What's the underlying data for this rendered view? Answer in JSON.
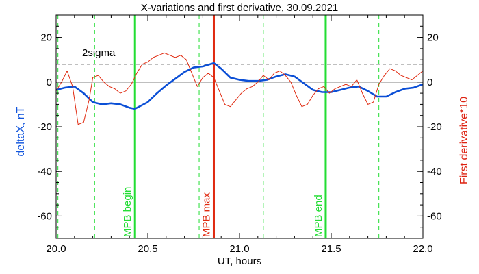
{
  "chart_data": {
    "type": "line",
    "title": "X-variations and first derivative, 30.09.2021",
    "xlabel": "UT, hours",
    "ylabel_left": "deltaX, nT",
    "ylabel_right": "First derivative*10",
    "xlim": [
      20.0,
      22.0
    ],
    "ylim": [
      -70,
      30
    ],
    "xticks": [
      20.0,
      20.5,
      21.0,
      21.5,
      22.0
    ],
    "xtick_labels": [
      "20.0",
      "20.5",
      "21.0",
      "21.5",
      "22.0"
    ],
    "yticks": [
      20,
      0,
      -20,
      -40,
      -60
    ],
    "ytick_labels": [
      "20",
      "0",
      "-20",
      "-40",
      "-60"
    ],
    "sigma_level": 8,
    "sigma_label": "2sigma",
    "colors": {
      "deltaX": "#0b4fd6",
      "derivative": "#e02a10",
      "mpb": "#22dd33",
      "mpb_max": "#e02a10",
      "dashed_green": "#22dd33",
      "left_axis_label": "#1155dd",
      "right_axis_label": "#dd2211"
    },
    "dashed_green_x": [
      20.01,
      20.21,
      20.78,
      21.13,
      21.76
    ],
    "markers": [
      {
        "label": "MPB begin",
        "x": 20.43,
        "color": "#22dd33"
      },
      {
        "label": "MPB max",
        "x": 20.86,
        "color": "#e02a10"
      },
      {
        "label": "MPB end",
        "x": 21.47,
        "color": "#22dd33"
      }
    ],
    "series": [
      {
        "name": "deltaX",
        "x": [
          20.0,
          20.05,
          20.1,
          20.15,
          20.2,
          20.25,
          20.3,
          20.35,
          20.4,
          20.43,
          20.5,
          20.55,
          20.6,
          20.65,
          20.7,
          20.75,
          20.8,
          20.86,
          20.9,
          20.95,
          21.0,
          21.05,
          21.1,
          21.15,
          21.2,
          21.25,
          21.3,
          21.35,
          21.4,
          21.45,
          21.5,
          21.55,
          21.6,
          21.65,
          21.7,
          21.75,
          21.8,
          21.85,
          21.9,
          21.95,
          22.0
        ],
        "y": [
          -3.5,
          -2.5,
          -2,
          -5,
          -9,
          -10,
          -9.5,
          -10,
          -11.5,
          -12,
          -9,
          -5,
          -1.5,
          1.5,
          4.5,
          6.5,
          7,
          8.5,
          6,
          2,
          1,
          0.5,
          0.5,
          1,
          2.5,
          3.5,
          2.5,
          -0.5,
          -3.5,
          -4.5,
          -4.5,
          -3.5,
          -2.5,
          -2,
          -4,
          -6.5,
          -6.5,
          -4.5,
          -3,
          -2.5,
          -1
        ]
      },
      {
        "name": "derivative",
        "x": [
          20.0,
          20.03,
          20.06,
          20.09,
          20.12,
          20.15,
          20.18,
          20.2,
          20.23,
          20.26,
          20.29,
          20.32,
          20.35,
          20.38,
          20.41,
          20.44,
          20.47,
          20.5,
          20.53,
          20.56,
          20.59,
          20.62,
          20.65,
          20.68,
          20.71,
          20.74,
          20.77,
          20.8,
          20.83,
          20.86,
          20.89,
          20.92,
          20.95,
          20.98,
          21.01,
          21.04,
          21.07,
          21.1,
          21.13,
          21.16,
          21.19,
          21.22,
          21.25,
          21.28,
          21.31,
          21.34,
          21.37,
          21.4,
          21.43,
          21.46,
          21.49,
          21.52,
          21.55,
          21.58,
          21.61,
          21.64,
          21.67,
          21.7,
          21.73,
          21.76,
          21.79,
          21.82,
          21.85,
          21.88,
          21.91,
          21.94,
          21.97,
          22.0
        ],
        "y": [
          -4,
          0,
          5,
          -2,
          -19,
          -18,
          -8,
          2,
          3,
          0,
          -2,
          -3,
          -5,
          -4,
          -1,
          4,
          8,
          9,
          11,
          12,
          13,
          12,
          11,
          12,
          10,
          4,
          -2,
          2,
          4,
          2,
          -4,
          -10,
          -11,
          -8,
          -5,
          -3,
          -2,
          0,
          3,
          1,
          4,
          5,
          3,
          0,
          -6,
          -11,
          -10,
          -6,
          -3,
          -2,
          -5,
          -3,
          -2,
          -1,
          -2,
          1,
          -5,
          -10,
          -9,
          -1,
          3,
          6,
          5,
          3,
          2,
          1,
          3,
          5
        ]
      }
    ]
  }
}
